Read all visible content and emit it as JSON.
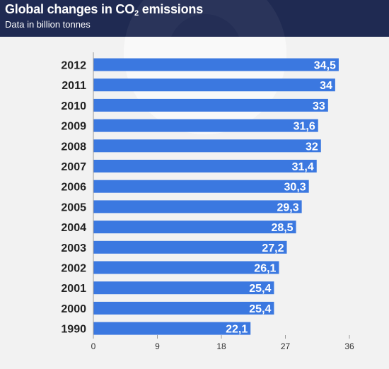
{
  "header": {
    "title_prefix": "Global changes in CO",
    "title_sub": "2",
    "title_suffix": " emissions",
    "subtitle": "Data in billion tonnes"
  },
  "chart_data": {
    "type": "bar",
    "orientation": "horizontal",
    "title": "Global changes in CO2 emissions",
    "subtitle": "Data in billion tonnes",
    "categories": [
      "2012",
      "2011",
      "2010",
      "2009",
      "2008",
      "2007",
      "2006",
      "2005",
      "2004",
      "2003",
      "2002",
      "2001",
      "2000",
      "1990"
    ],
    "values": [
      34.5,
      34,
      33,
      31.6,
      32,
      31.4,
      30.3,
      29.3,
      28.5,
      27.2,
      26.1,
      25.4,
      25.4,
      22.1
    ],
    "value_labels": [
      "34,5",
      "34",
      "33",
      "31,6",
      "32",
      "31,4",
      "30,3",
      "29,3",
      "28,5",
      "27,2",
      "26,1",
      "25,4",
      "25,4",
      "22,1"
    ],
    "xlim": [
      0,
      36
    ],
    "xticks": [
      0,
      9,
      18,
      27,
      36
    ],
    "xtick_labels": [
      "0",
      "9",
      "18",
      "27",
      "36"
    ],
    "bar_color": "#3b78e0",
    "grid": false,
    "legend": "none"
  }
}
